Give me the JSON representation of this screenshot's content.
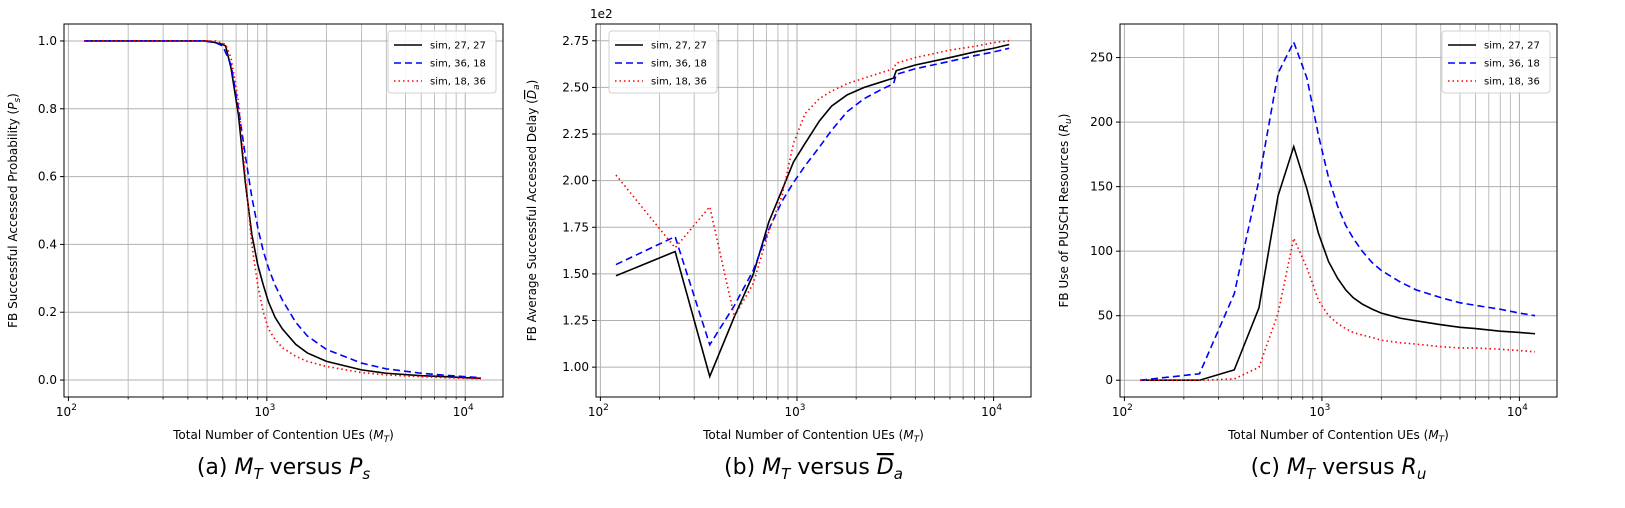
{
  "chart_data": [
    {
      "type": "line",
      "caption": "(a) M_T versus P_s",
      "caption_parts": [
        "(a) ",
        "M",
        "T",
        " versus ",
        "P",
        "s"
      ],
      "xlabel_parts": [
        "Total Number of Contention UEs (",
        "M",
        "T",
        ")"
      ],
      "ylabel_parts": [
        "FB Successful Accessed Probability (",
        "P",
        "s",
        ")"
      ],
      "xscale": "log",
      "xlim": [
        95,
        15500
      ],
      "ylim": [
        -0.05,
        1.05
      ],
      "yticks": [
        0.0,
        0.2,
        0.4,
        0.6,
        0.8,
        1.0
      ],
      "ytick_labels": [
        "0.0",
        "0.2",
        "0.4",
        "0.6",
        "0.8",
        "1.0"
      ],
      "xtick_exponents": [
        "2",
        "3",
        "4"
      ],
      "y_multiplier": "",
      "grid": true,
      "legend_position": "top-right",
      "series": [
        {
          "name": "sim, 27, 27",
          "color": "#000000",
          "dash": "solid",
          "x": [
            120,
            240,
            360,
            480,
            500,
            550,
            600,
            620,
            660,
            720,
            780,
            840,
            900,
            960,
            1020,
            1100,
            1200,
            1400,
            1600,
            2000,
            3000,
            4000,
            6000,
            8000,
            10000,
            12000
          ],
          "y": [
            1.0,
            1.0,
            1.0,
            1.0,
            1.0,
            0.995,
            0.99,
            0.985,
            0.92,
            0.78,
            0.58,
            0.43,
            0.34,
            0.28,
            0.23,
            0.185,
            0.15,
            0.105,
            0.08,
            0.055,
            0.03,
            0.02,
            0.013,
            0.01,
            0.007,
            0.005
          ]
        },
        {
          "name": "sim, 36, 18",
          "color": "#0000ff",
          "dash": "dashed",
          "x": [
            120,
            240,
            360,
            480,
            550,
            600,
            660,
            720,
            780,
            840,
            900,
            960,
            1020,
            1100,
            1200,
            1400,
            1600,
            2000,
            3000,
            4000,
            6000,
            8000,
            10000,
            12000
          ],
          "y": [
            1.0,
            1.0,
            1.0,
            1.0,
            0.995,
            0.985,
            0.93,
            0.8,
            0.66,
            0.54,
            0.45,
            0.38,
            0.33,
            0.28,
            0.235,
            0.17,
            0.13,
            0.09,
            0.05,
            0.033,
            0.02,
            0.014,
            0.01,
            0.007
          ]
        },
        {
          "name": "sim, 18, 36",
          "color": "#ff0000",
          "dash": "dotted",
          "x": [
            120,
            240,
            360,
            480,
            550,
            620,
            660,
            720,
            780,
            840,
            900,
            960,
            1020,
            1100,
            1200,
            1400,
            1600,
            2000,
            3000,
            4000,
            6000,
            8000,
            10000,
            12000
          ],
          "y": [
            1.0,
            1.0,
            1.0,
            1.0,
            1.0,
            0.99,
            0.95,
            0.82,
            0.6,
            0.4,
            0.28,
            0.2,
            0.15,
            0.12,
            0.095,
            0.07,
            0.055,
            0.04,
            0.022,
            0.015,
            0.01,
            0.007,
            0.005,
            0.004
          ]
        }
      ]
    },
    {
      "type": "line",
      "caption": "(b) M_T versus D_a (overline)",
      "caption_parts": [
        "(b) ",
        "M",
        "T",
        " versus ",
        "D",
        "a"
      ],
      "xlabel_parts": [
        "Total Number of Contention UEs (",
        "M",
        "T",
        ")"
      ],
      "ylabel_parts": [
        "FB Average Successful Accessed Delay (",
        "D",
        "a",
        ")"
      ],
      "xscale": "log",
      "xlim": [
        95,
        15500
      ],
      "ylim": [
        0.84,
        2.84
      ],
      "yticks": [
        1.0,
        1.25,
        1.5,
        1.75,
        2.0,
        2.25,
        2.5,
        2.75
      ],
      "ytick_labels": [
        "1.00",
        "1.25",
        "1.50",
        "1.75",
        "2.00",
        "2.25",
        "2.50",
        "2.75"
      ],
      "xtick_exponents": [
        "2",
        "3",
        "4"
      ],
      "y_multiplier": "1e2",
      "grid": true,
      "legend_position": "top-left",
      "series": [
        {
          "name": "sim, 27, 27",
          "color": "#000000",
          "dash": "solid",
          "x": [
            120,
            240,
            360,
            480,
            600,
            720,
            840,
            960,
            1100,
            1300,
            1500,
            1800,
            2200,
            2700,
            3100,
            3200,
            4000,
            6000,
            8000,
            10000,
            12000
          ],
          "y": [
            1.49,
            1.62,
            0.95,
            1.27,
            1.5,
            1.78,
            1.95,
            2.1,
            2.2,
            2.32,
            2.4,
            2.46,
            2.5,
            2.53,
            2.55,
            2.59,
            2.62,
            2.66,
            2.69,
            2.71,
            2.73
          ]
        },
        {
          "name": "sim, 36, 18",
          "color": "#0000ff",
          "dash": "dashed",
          "x": [
            120,
            240,
            360,
            480,
            600,
            720,
            840,
            960,
            1100,
            1300,
            1500,
            1800,
            2200,
            2700,
            3100,
            3200,
            4000,
            6000,
            8000,
            10000,
            12000
          ],
          "y": [
            1.55,
            1.7,
            1.12,
            1.33,
            1.52,
            1.74,
            1.89,
            1.99,
            2.08,
            2.18,
            2.27,
            2.37,
            2.44,
            2.49,
            2.52,
            2.57,
            2.6,
            2.64,
            2.67,
            2.69,
            2.71
          ]
        },
        {
          "name": "sim, 18, 36",
          "color": "#ff0000",
          "dash": "dotted",
          "x": [
            120,
            240,
            360,
            480,
            600,
            720,
            840,
            960,
            1100,
            1300,
            1500,
            1800,
            2200,
            2700,
            3100,
            3200,
            4000,
            6000,
            8000,
            10000,
            12000
          ],
          "y": [
            2.03,
            1.64,
            1.86,
            1.27,
            1.45,
            1.73,
            1.92,
            2.2,
            2.36,
            2.44,
            2.48,
            2.52,
            2.55,
            2.58,
            2.6,
            2.63,
            2.66,
            2.7,
            2.72,
            2.74,
            2.75
          ]
        }
      ]
    },
    {
      "type": "line",
      "caption": "(c) M_T versus R_u",
      "caption_parts": [
        "(c) ",
        "M",
        "T",
        " versus ",
        "R",
        "u"
      ],
      "xlabel_parts": [
        "Total Number of Contention UEs (",
        "M",
        "T",
        ")"
      ],
      "ylabel_parts": [
        "FB Use of PUSCH Resources (",
        "R",
        "u",
        ")"
      ],
      "xscale": "log",
      "xlim": [
        95,
        15500
      ],
      "ylim": [
        -13,
        276
      ],
      "yticks": [
        0,
        50,
        100,
        150,
        200,
        250
      ],
      "ytick_labels": [
        "0",
        "50",
        "100",
        "150",
        "200",
        "250"
      ],
      "xtick_exponents": [
        "2",
        "3",
        "4"
      ],
      "y_multiplier": "",
      "grid": true,
      "legend_position": "top-right",
      "series": [
        {
          "name": "sim, 27, 27",
          "color": "#000000",
          "dash": "solid",
          "x": [
            120,
            240,
            360,
            480,
            600,
            720,
            840,
            960,
            1080,
            1200,
            1320,
            1440,
            1600,
            1800,
            2000,
            2500,
            3000,
            4000,
            5000,
            6000,
            8000,
            10000,
            12000
          ],
          "y": [
            0,
            0,
            8,
            56,
            143,
            181,
            148,
            114,
            92,
            79,
            70,
            64,
            59,
            55,
            52,
            48,
            46,
            43,
            41,
            40,
            38,
            37,
            36
          ]
        },
        {
          "name": "sim, 36, 18",
          "color": "#0000ff",
          "dash": "dashed",
          "x": [
            120,
            240,
            360,
            480,
            600,
            720,
            840,
            960,
            1080,
            1200,
            1320,
            1440,
            1600,
            1800,
            2000,
            2500,
            3000,
            4000,
            5000,
            6000,
            8000,
            10000,
            12000
          ],
          "y": [
            0,
            5,
            67,
            155,
            238,
            262,
            234,
            190,
            157,
            135,
            120,
            110,
            100,
            91,
            85,
            76,
            70,
            64,
            60,
            58,
            55,
            52,
            50
          ]
        },
        {
          "name": "sim, 18, 36",
          "color": "#ff0000",
          "dash": "dotted",
          "x": [
            120,
            240,
            360,
            480,
            600,
            720,
            840,
            960,
            1080,
            1200,
            1320,
            1440,
            1600,
            1800,
            2000,
            2500,
            3000,
            4000,
            5000,
            6000,
            8000,
            10000,
            12000
          ],
          "y": [
            0,
            0,
            1,
            10,
            52,
            110,
            87,
            62,
            50,
            44,
            40,
            37,
            35,
            33,
            31,
            29,
            28,
            26,
            25,
            25,
            24,
            23,
            22
          ]
        }
      ]
    }
  ]
}
